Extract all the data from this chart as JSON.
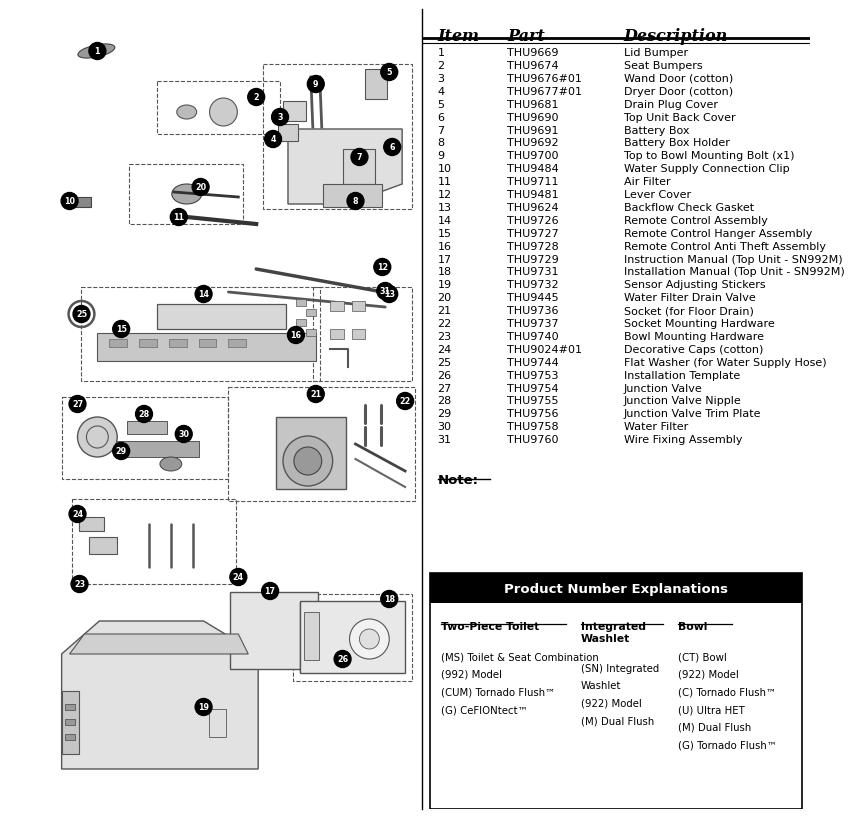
{
  "bg_color": "#ffffff",
  "parts": [
    [
      "1",
      "THU9669",
      "Lid Bumper"
    ],
    [
      "2",
      "THU9674",
      "Seat Bumpers"
    ],
    [
      "3",
      "THU9676#01",
      "Wand Door (cotton)"
    ],
    [
      "4",
      "THU9677#01",
      "Dryer Door (cotton)"
    ],
    [
      "5",
      "THU9681",
      "Drain Plug Cover"
    ],
    [
      "6",
      "THU9690",
      "Top Unit Back Cover"
    ],
    [
      "7",
      "THU9691",
      "Battery Box"
    ],
    [
      "8",
      "THU9692",
      "Battery Box Holder"
    ],
    [
      "9",
      "THU9700",
      "Top to Bowl Mounting Bolt (x1)"
    ],
    [
      "10",
      "THU9484",
      "Water Supply Connection Clip"
    ],
    [
      "11",
      "THU9711",
      "Air Filter"
    ],
    [
      "12",
      "THU9481",
      "Lever Cover"
    ],
    [
      "13",
      "THU9624",
      "Backflow Check Gasket"
    ],
    [
      "14",
      "THU9726",
      "Remote Control Assembly"
    ],
    [
      "15",
      "THU9727",
      "Remote Control Hanger Assembly"
    ],
    [
      "16",
      "THU9728",
      "Remote Control Anti Theft Assembly"
    ],
    [
      "17",
      "THU9729",
      "Instruction Manual (Top Unit - SN992M)"
    ],
    [
      "18",
      "THU9731",
      "Installation Manual (Top Unit - SN992M)"
    ],
    [
      "19",
      "THU9732",
      "Sensor Adjusting Stickers"
    ],
    [
      "20",
      "THU9445",
      "Water Filter Drain Valve"
    ],
    [
      "21",
      "THU9736",
      "Socket (for Floor Drain)"
    ],
    [
      "22",
      "THU9737",
      "Socket Mounting Hardware"
    ],
    [
      "23",
      "THU9740",
      "Bowl Mounting Hardware"
    ],
    [
      "24",
      "THU9024#01",
      "Decorative Caps (cotton)"
    ],
    [
      "25",
      "THU9744",
      "Flat Washer (for Water Supply Hose)"
    ],
    [
      "26",
      "THU9753",
      "Installation Template"
    ],
    [
      "27",
      "THU9754",
      "Junction Valve"
    ],
    [
      "28",
      "THU9755",
      "Junction Valve Nipple"
    ],
    [
      "29",
      "THU9756",
      "Junction Valve Trim Plate"
    ],
    [
      "30",
      "THU9758",
      "Water Filter"
    ],
    [
      "31",
      "THU9760",
      "Wire Fixing Assembly"
    ]
  ],
  "col1_header": "Two-Piece Toilet",
  "col2_header": "Integrated\nWashlet",
  "col3_header": "Bowl",
  "col1_items": [
    "(MS) Toilet & Seat Combination",
    "(992) Model",
    "(CUM) Tornado Flush™",
    "(G) CeFIONtect™"
  ],
  "col2_items": [
    "(SN) Integrated",
    "Washlet",
    "(922) Model",
    "(M) Dual Flush"
  ],
  "col3_items": [
    "(CT) Bowl",
    "(922) Model",
    "(C) Tornado Flush™",
    "(U) Ultra HET",
    "(M) Dual Flush",
    "(G) Tornado Flush™"
  ]
}
